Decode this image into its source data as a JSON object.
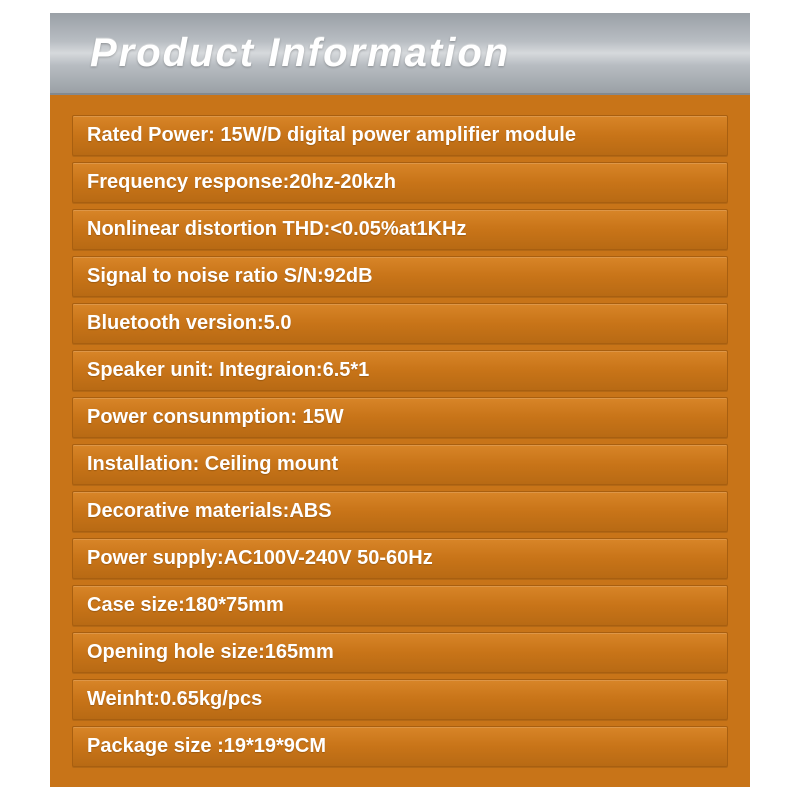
{
  "card": {
    "title": "Product Information",
    "background_color": "#c87418",
    "header_gradient_top": "#9aa0a6",
    "header_gradient_mid": "#d6d9dc",
    "header_text_color": "#ffffff",
    "header_fontsize": 40,
    "row_bg_top": "#d88528",
    "row_bg_mid": "#c87418",
    "row_bg_bottom": "#b86a14",
    "row_border": "#a85f10",
    "row_text_color": "#ffffff",
    "row_fontsize": 20,
    "rows": [
      "Rated Power: 15W/D digital power amplifier module",
      "Frequency  response:20hz-20kzh",
      "Nonlinear distortion THD:<0.05%at1KHz",
      "Signal to noise ratio S/N:92dB",
      "Bluetooth version:5.0",
      "Speaker unit: Integraion:6.5*1",
      "Power consunmption: 15W",
      "Installation: Ceiling mount",
      "Decorative materials:ABS",
      "Power supply:AC100V-240V  50-60Hz",
      "Case size:180*75mm",
      "Opening hole size:165mm",
      "Weinht:0.65kg/pcs",
      "Package size :19*19*9CM"
    ]
  }
}
